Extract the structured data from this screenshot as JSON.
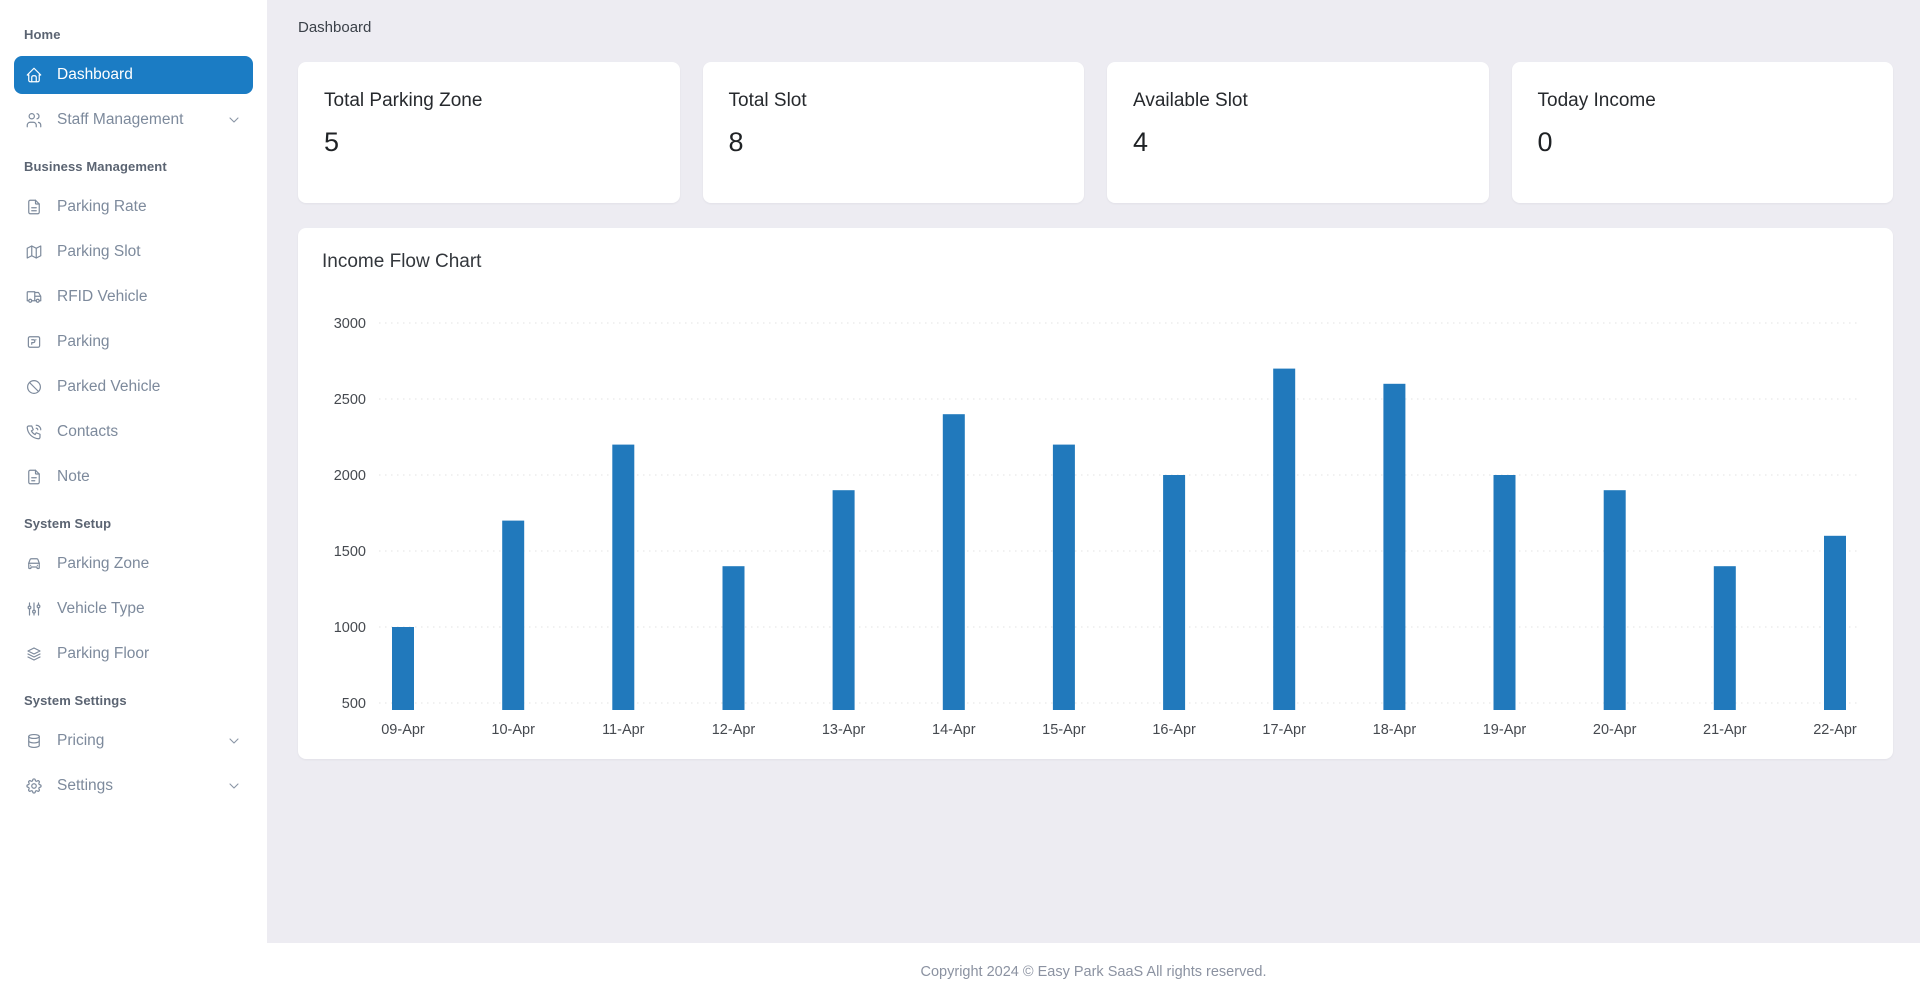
{
  "header": {
    "title": "Dashboard"
  },
  "sidebar": {
    "sections": [
      {
        "label": "Home",
        "items": [
          {
            "label": "Dashboard",
            "icon": "home-icon",
            "active": true
          },
          {
            "label": "Staff Management",
            "icon": "users-icon",
            "chevron": true
          }
        ]
      },
      {
        "label": "Business Management",
        "items": [
          {
            "label": "Parking Rate",
            "icon": "file-text-icon"
          },
          {
            "label": "Parking Slot",
            "icon": "map-icon"
          },
          {
            "label": "RFID Vehicle",
            "icon": "truck-icon"
          },
          {
            "label": "Parking",
            "icon": "parking-meter-icon"
          },
          {
            "label": "Parked Vehicle",
            "icon": "ban-icon"
          },
          {
            "label": "Contacts",
            "icon": "phone-icon"
          },
          {
            "label": "Note",
            "icon": "note-icon"
          }
        ]
      },
      {
        "label": "System Setup",
        "items": [
          {
            "label": "Parking Zone",
            "icon": "car-icon"
          },
          {
            "label": "Vehicle Type",
            "icon": "sliders-icon"
          },
          {
            "label": "Parking Floor",
            "icon": "layers-icon"
          }
        ]
      },
      {
        "label": "System Settings",
        "items": [
          {
            "label": "Pricing",
            "icon": "database-icon",
            "chevron": true
          },
          {
            "label": "Settings",
            "icon": "gear-icon",
            "chevron": true
          }
        ]
      }
    ]
  },
  "stats": [
    {
      "label": "Total Parking Zone",
      "value": "5"
    },
    {
      "label": "Total Slot",
      "value": "8"
    },
    {
      "label": "Available Slot",
      "value": "4"
    },
    {
      "label": "Today Income",
      "value": "0"
    }
  ],
  "chart_data": {
    "type": "bar",
    "title": "Income Flow Chart",
    "categories": [
      "09-Apr",
      "10-Apr",
      "11-Apr",
      "12-Apr",
      "13-Apr",
      "14-Apr",
      "15-Apr",
      "16-Apr",
      "17-Apr",
      "18-Apr",
      "19-Apr",
      "20-Apr",
      "21-Apr",
      "22-Apr"
    ],
    "values": [
      1000,
      1700,
      2200,
      1400,
      1900,
      2400,
      2200,
      2000,
      2700,
      2600,
      2000,
      1900,
      1400,
      1600
    ],
    "xlabel": "",
    "ylabel": "",
    "ylim": [
      500,
      3000
    ],
    "yticks": [
      3000,
      2500,
      2000,
      1500,
      1000,
      500
    ],
    "legend": "none",
    "grid": "horizontal-dotted",
    "bar_color": "#2179bc"
  },
  "footer": {
    "text": "Copyright 2024 © Easy Park SaaS All rights reserved."
  },
  "colors": {
    "accent": "#1b7cc4",
    "bar": "#2179bc",
    "main_bg": "#edecf2",
    "sidebar_bg": "#ffffff",
    "grid_line": "#e3e3e3",
    "axis_label": "#45494f"
  }
}
